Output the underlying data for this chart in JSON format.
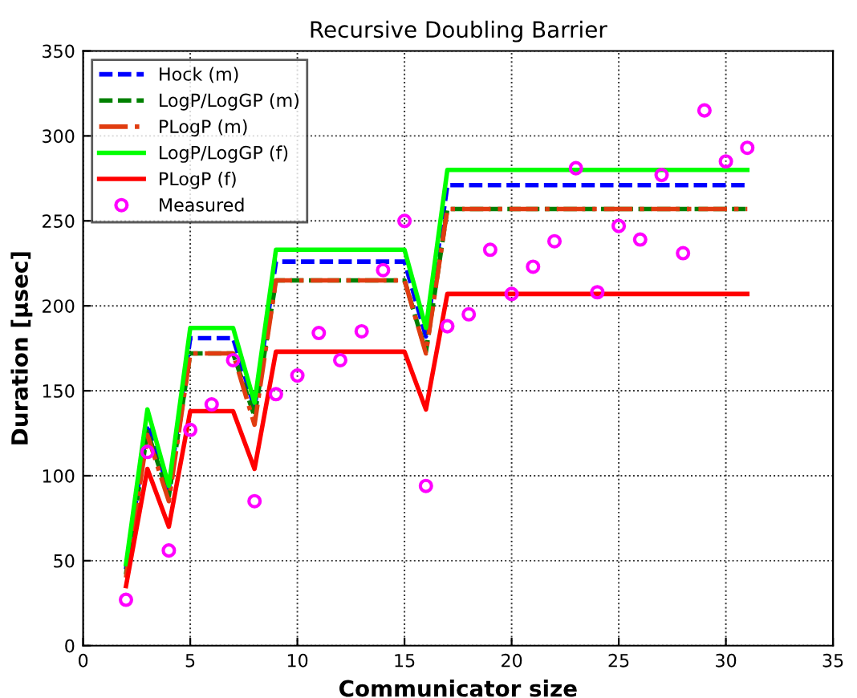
{
  "chart_data": {
    "type": "line",
    "title": "Recursive Doubling Barrier",
    "xlabel": "Communicator size",
    "ylabel": "Duration [µsec]",
    "xlim": [
      0,
      35
    ],
    "xticks": [
      0,
      5,
      10,
      15,
      20,
      25,
      30,
      35
    ],
    "ylim": [
      0,
      350
    ],
    "yticks": [
      0,
      50,
      100,
      150,
      200,
      250,
      300,
      350
    ],
    "grid": true,
    "legend": "top left",
    "series": [
      {
        "name": "Hock (m)",
        "color": "#0000ff",
        "line_style": "dashed",
        "x": [
          2,
          3,
          4,
          5,
          7,
          8,
          9,
          15,
          16,
          17,
          31
        ],
        "values": [
          45,
          130,
          92,
          181,
          181,
          140,
          226,
          226,
          182,
          271,
          271
        ]
      },
      {
        "name": "LogP/LogGP (m)",
        "color": "#008000",
        "line_style": "dashed",
        "x": [
          2,
          3,
          4,
          5,
          7,
          8,
          9,
          15,
          16,
          17,
          31
        ],
        "values": [
          42,
          126,
          88,
          172,
          172,
          135,
          215,
          215,
          173,
          257,
          257
        ]
      },
      {
        "name": "PLogP (m)",
        "color": "#e03c10",
        "line_style": "dashdot",
        "x": [
          2,
          3,
          4,
          5,
          7,
          8,
          9,
          15,
          16,
          17,
          31
        ],
        "values": [
          40,
          124,
          85,
          172,
          172,
          130,
          215,
          215,
          172,
          257,
          257
        ]
      },
      {
        "name": "LogP/LogGP (f)",
        "color": "#00ff00",
        "line_style": "solid",
        "x": [
          2,
          3,
          4,
          5,
          7,
          8,
          9,
          15,
          16,
          17,
          31
        ],
        "values": [
          48,
          139,
          94,
          187,
          187,
          143,
          233,
          233,
          187,
          280,
          280
        ]
      },
      {
        "name": "PLogP (f)",
        "color": "#ff0000",
        "line_style": "solid",
        "x": [
          2,
          3,
          4,
          5,
          7,
          8,
          9,
          15,
          16,
          17,
          31
        ],
        "values": [
          35,
          104,
          70,
          138,
          138,
          104,
          173,
          173,
          139,
          207,
          207
        ]
      },
      {
        "name": "Measured",
        "type": "scatter",
        "color": "#ff00ff",
        "marker": "circle",
        "x": [
          2,
          3,
          4,
          5,
          6,
          7,
          8,
          9,
          10,
          11,
          12,
          13,
          14,
          15,
          16,
          17,
          18,
          19,
          20,
          21,
          22,
          23,
          24,
          25,
          26,
          27,
          28,
          29,
          30,
          31
        ],
        "values": [
          27,
          114,
          56,
          127,
          142,
          168,
          85,
          148,
          159,
          184,
          168,
          185,
          221,
          250,
          94,
          188,
          195,
          233,
          207,
          223,
          238,
          281,
          208,
          247,
          239,
          277,
          231,
          315,
          285,
          293
        ]
      }
    ]
  }
}
